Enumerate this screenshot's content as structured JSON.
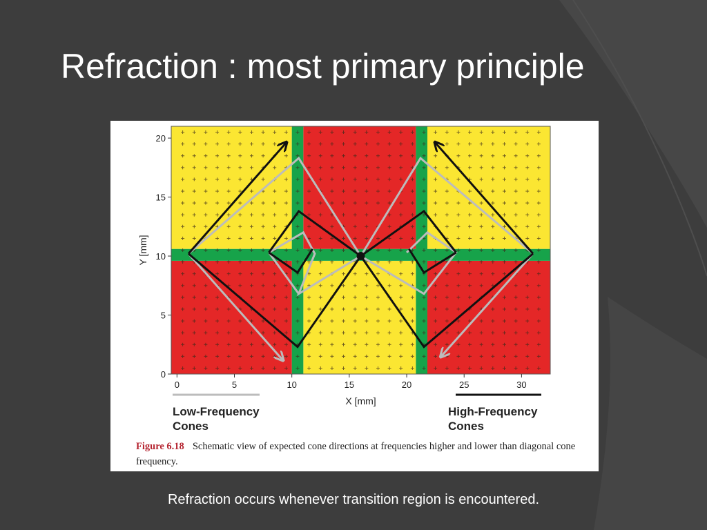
{
  "slide": {
    "title": "Refraction : most primary principle",
    "body_text": "Refraction occurs whenever transition region is encountered."
  },
  "figure": {
    "x_axis_label": "X [mm]",
    "y_axis_label": "Y [mm]",
    "x_ticks": [
      0,
      5,
      10,
      15,
      20,
      25,
      30
    ],
    "y_ticks": [
      0,
      5,
      10,
      15,
      20
    ],
    "x_range": [
      -0.5,
      32.5
    ],
    "y_range": [
      0,
      21
    ],
    "legend_low": {
      "line1": "Low-Frequency",
      "line2": "Cones",
      "color": "#bcbcbc"
    },
    "legend_high": {
      "line1": "High-Frequency",
      "line2": "Cones",
      "color": "#111111"
    },
    "caption_label": "Figure 6.18",
    "caption_text": "Schematic view of expected cone directions at frequencies higher and lower than diagonal cone frequency.",
    "colors": {
      "yellow": "#fbe632",
      "red": "#e42727",
      "green": "#17a34a",
      "high_frequency_line": "#111111",
      "low_frequency_line": "#bcbcbc"
    }
  }
}
